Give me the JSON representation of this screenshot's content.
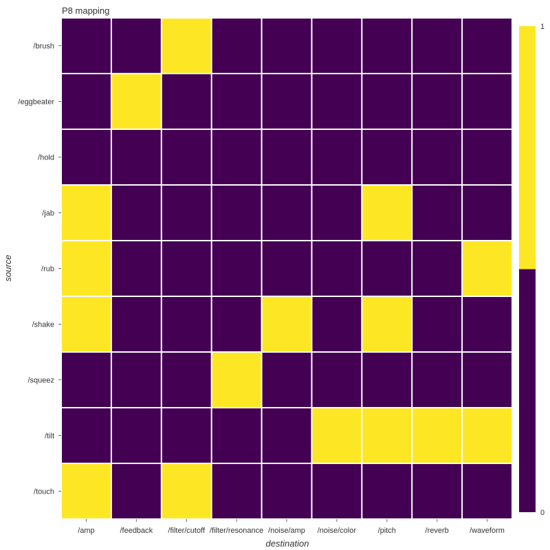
{
  "chart_data": {
    "type": "heatmap",
    "title": "P8 mapping",
    "xlabel": "destination",
    "ylabel": "source",
    "x_categories": [
      "/amp",
      "/feedback",
      "/filter/cutoff",
      "/filter/resonance",
      "/noise/amp",
      "/noise/color",
      "/pitch",
      "/reverb",
      "/waveform"
    ],
    "y_categories": [
      "/brush",
      "/eggbeater",
      "/hold",
      "/jab",
      "/rub",
      "/shake",
      "/squeez",
      "/tilt",
      "/touch"
    ],
    "values": [
      [
        0,
        0,
        1,
        0,
        0,
        0,
        0,
        0,
        0
      ],
      [
        0,
        1,
        0,
        0,
        0,
        0,
        0,
        0,
        0
      ],
      [
        0,
        0,
        0,
        0,
        0,
        0,
        0,
        0,
        0
      ],
      [
        1,
        0,
        0,
        0,
        0,
        0,
        1,
        0,
        0
      ],
      [
        1,
        0,
        0,
        0,
        0,
        0,
        0,
        0,
        1
      ],
      [
        1,
        0,
        0,
        0,
        1,
        0,
        1,
        0,
        0
      ],
      [
        0,
        0,
        0,
        1,
        0,
        0,
        0,
        0,
        0
      ],
      [
        0,
        0,
        0,
        0,
        0,
        1,
        1,
        1,
        1
      ],
      [
        1,
        0,
        1,
        0,
        0,
        0,
        0,
        0,
        0
      ]
    ],
    "colorscale": {
      "low": "#440154",
      "high": "#fde725"
    },
    "colorbar": {
      "min": 0,
      "max": 1,
      "ticks": [
        "0",
        "1"
      ]
    },
    "grid": true
  }
}
